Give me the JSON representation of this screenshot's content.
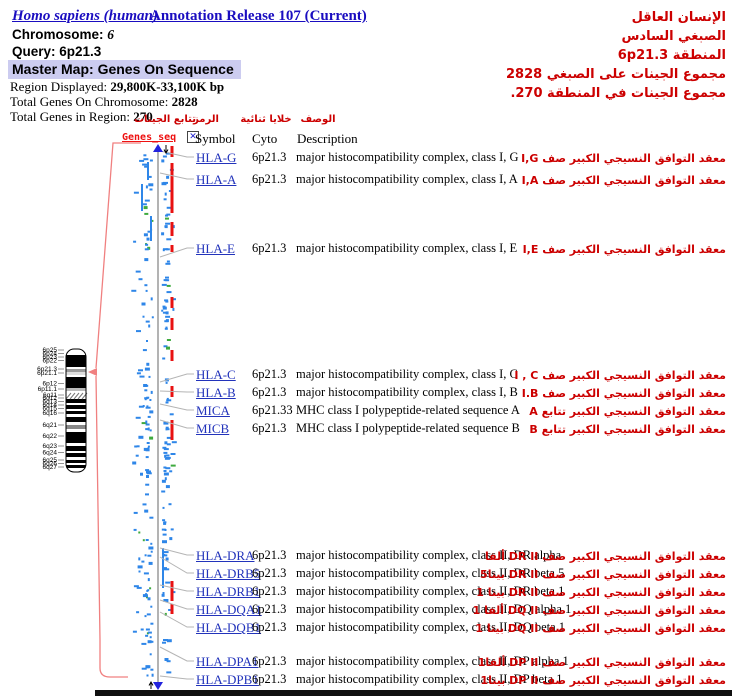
{
  "header": {
    "species_link": "Homo sapiens (human)",
    "annotation_link": "Annotation Release 107 (Current)",
    "chromosome_label": "Chromosome:",
    "chromosome_value": "6",
    "query_label": "Query:",
    "query_value": "6p21.3",
    "master_map": "Master Map: Genes On Sequence",
    "region_label": "Region Displayed:",
    "region_value": "29,800K-33,100K bp",
    "total_chrom_label": "Total Genes On Chromosome:",
    "total_chrom_value": "2828",
    "total_region_label": "Total Genes in Region:",
    "total_region_value": "270"
  },
  "arabic_header": {
    "line1": "الإنسان العاقل",
    "line2": "الصبغي السادس",
    "line3": "المنطقة 6p21.3",
    "line4": "مجموع الجينات على الصبغي 2828",
    "line5": "مجموع الجينات في المنطقة 270."
  },
  "table": {
    "map_label": "Genes_seq",
    "headers": {
      "symbol": "Symbol",
      "cyto": "Cyto",
      "description": "Description"
    },
    "arabic_headers": {
      "genes_seq": "تتابع الجينات",
      "symbol": "الرمز",
      "cyto": "خلايا ثنائية",
      "description": "الوصف"
    },
    "rows": [
      {
        "symbol": "HLA-G",
        "cyto": "6p21.3",
        "desc": "major histocompatibility complex, class I, G",
        "ar": "معقد التوافق النسيجي الكبير صف I,G"
      },
      {
        "symbol": "HLA-A",
        "cyto": "6p21.3",
        "desc": "major histocompatibility complex, class I, A",
        "ar": "معقد التوافق النسيجي الكبير صف I,A"
      },
      {
        "symbol": "HLA-E",
        "cyto": "6p21.3",
        "desc": "major histocompatibility complex, class I, E",
        "ar": "معقد التوافق النسيجي الكبير صف I,E"
      },
      {
        "symbol": "HLA-C",
        "cyto": "6p21.3",
        "desc": "major histocompatibility complex, class I, C",
        "ar": "معقد التوافق النسيجي الكبير صف I , C"
      },
      {
        "symbol": "HLA-B",
        "cyto": "6p21.3",
        "desc": "major histocompatibility complex, class I, B",
        "ar": "معقد التوافق النسيجي الكبير صف I.B"
      },
      {
        "symbol": "MICA",
        "cyto": "6p21.33",
        "desc": "MHC class I polypeptide-related sequence A",
        "ar": "معقد التوافق النسيجي الكبير تتابع A"
      },
      {
        "symbol": "MICB",
        "cyto": "6p21.3",
        "desc": "MHC class I polypeptide-related sequence B",
        "ar": "معقد التوافق النسيجي الكبير تتابع B"
      },
      {
        "symbol": "HLA-DRA",
        "cyto": "6p21.3",
        "desc": "major histocompatibility complex, class II, DR alpha",
        "ar": "معقد التوافق النسيجي الكبير صف DR II ألفا"
      },
      {
        "symbol": "HLA-DRB5",
        "cyto": "6p21.3",
        "desc": "major histocompatibility complex, class II, DR beta 5",
        "ar": "معقد التوافق النسيجي الكبير صف DR II بيتا5"
      },
      {
        "symbol": "HLA-DRB1",
        "cyto": "6p21.3",
        "desc": "major histocompatibility complex, class II, DR beta 1",
        "ar": "معقد التوافق النسيجي الكبير صف DR II بيتا 1"
      },
      {
        "symbol": "HLA-DQA1",
        "cyto": "6p21.3",
        "desc": "major histocompatibility complex, class II, DQ alpha 1",
        "ar": "معقد التوافق النسيجي الكبير صف DQ II ألفا 1"
      },
      {
        "symbol": "HLA-DQB1",
        "cyto": "6p21.3",
        "desc": "major histocompatibility complex, class II, DQ beta 1",
        "ar": "معقد التوافق النسيجي الكبير صف DQ II بيتا 1"
      },
      {
        "symbol": "HLA-DPA1",
        "cyto": "6p21.3",
        "desc": "major histocompatibility complex, class II, DP alpha 1",
        "ar": "معقد التوافق النسيجي الكبير صف DP II ألفا1"
      },
      {
        "symbol": "HLA-DPB1",
        "cyto": "6p21.3",
        "desc": "major histocompatibility complex, class II, DP beta 1",
        "ar": "معقد التوافق النسيجي الكبير صف DP II بيتا1"
      }
    ]
  },
  "ideogram": {
    "labels": [
      "6p25",
      "6p24",
      "6p23",
      "6p22",
      "6p21.3",
      "6p21.1",
      "6p12",
      "6p11.1",
      "6q11",
      "6q12",
      "6q13",
      "6q14",
      "6q15",
      "6q16",
      "6q21",
      "6q22",
      "6q23",
      "6q24",
      "6q25",
      "6q26",
      "6q27"
    ]
  },
  "icons": {
    "remove_map": "✕"
  },
  "map_marks": {
    "seed": 7,
    "tick_count": 250
  },
  "colors": {
    "red_text": "#cc0000",
    "link_blue": "#1a0dc0",
    "gene_link_blue": "#2233bb",
    "map_label_red": "#ee1111",
    "tick_blue": "#2e86e8",
    "tick_green": "#3eaa3e",
    "segment_red": "#e81111",
    "bracket_salmon": "#f08080",
    "highlight_bg": "#ccccf0"
  }
}
